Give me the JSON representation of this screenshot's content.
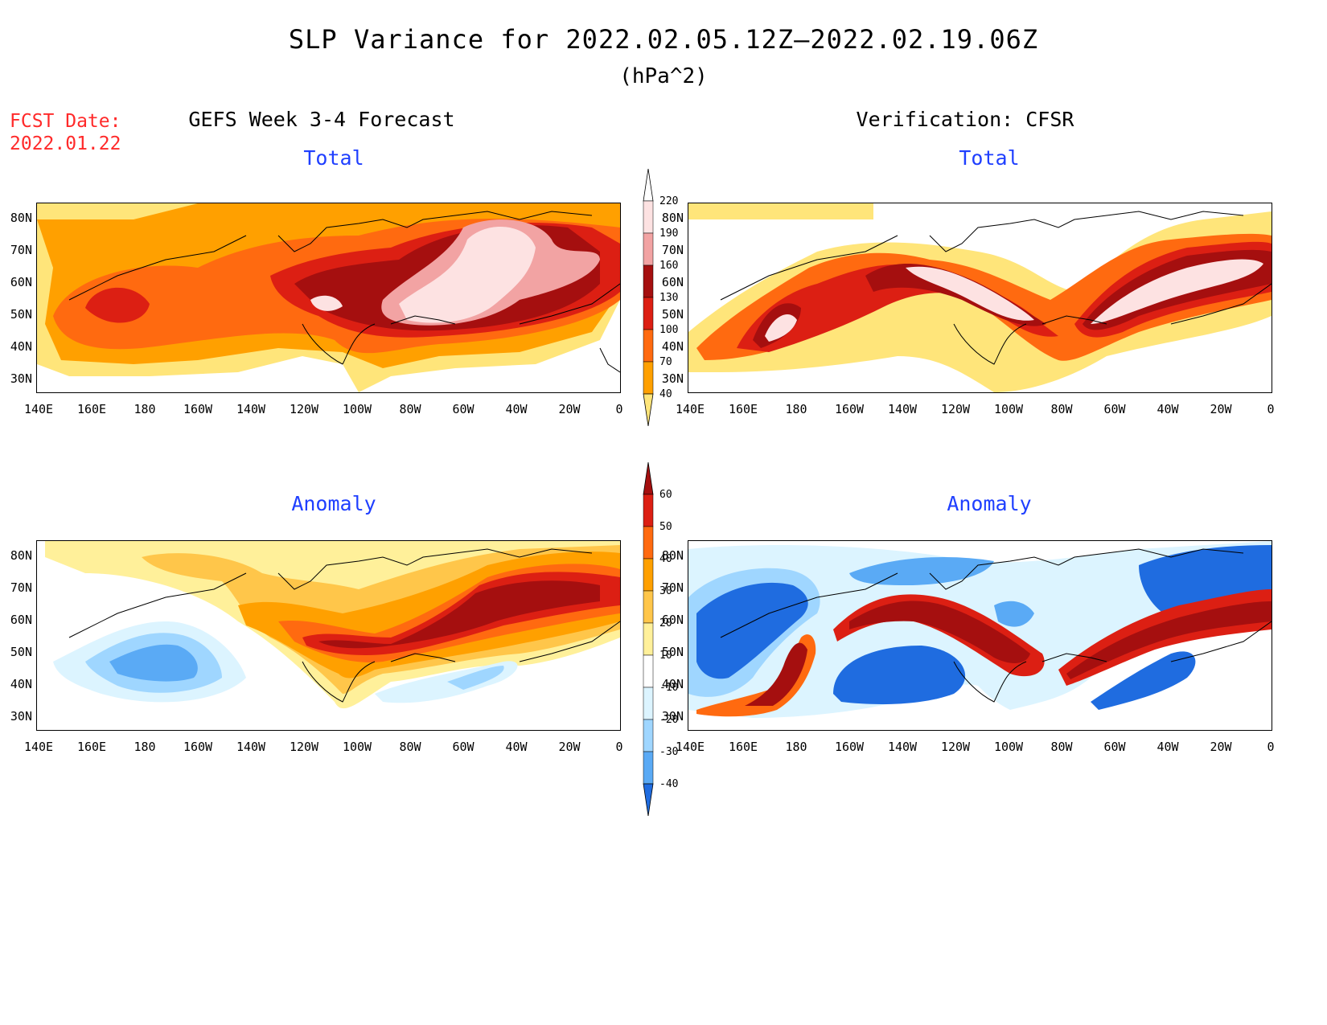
{
  "header": {
    "title": "SLP Variance for 2022.02.05.12Z–2022.02.19.06Z",
    "units": "(hPa^2)",
    "fcst_label": "FCST Date:",
    "fcst_date": "2022.01.22"
  },
  "columns": {
    "left_title": "GEFS Week 3-4 Forecast",
    "right_title": "Verification: CFSR"
  },
  "panels": {
    "fcst_total": {
      "subtitle": "Total"
    },
    "verif_total": {
      "subtitle": "Total"
    },
    "fcst_anom": {
      "subtitle": "Anomaly"
    },
    "verif_anom": {
      "subtitle": "Anomaly"
    }
  },
  "axes": {
    "lat_labels": [
      "80N",
      "70N",
      "60N",
      "50N",
      "40N",
      "30N"
    ],
    "lon_labels": [
      "140E",
      "160E",
      "180",
      "160W",
      "140W",
      "120W",
      "100W",
      "80W",
      "60W",
      "40W",
      "20W",
      "0"
    ]
  },
  "colorbars": {
    "total": {
      "labels": [
        "220",
        "190",
        "160",
        "130",
        "100",
        "70",
        "40"
      ],
      "colors": [
        "#fde2e2",
        "#f2a3a3",
        "#a50f0f",
        "#dc1f13",
        "#ff6a10",
        "#ffa000",
        "#ffe57a"
      ]
    },
    "anomaly": {
      "labels": [
        "60",
        "50",
        "40",
        "30",
        "20",
        "10",
        "-10",
        "-20",
        "-30",
        "-40"
      ],
      "colors": [
        "#a50f0f",
        "#dc1f13",
        "#ff6a10",
        "#ffa000",
        "#ffc64a",
        "#fff09a",
        "#ffffff",
        "#dcf4ff",
        "#9fd6ff",
        "#5aaaf5",
        "#1f6ce0"
      ]
    }
  }
}
